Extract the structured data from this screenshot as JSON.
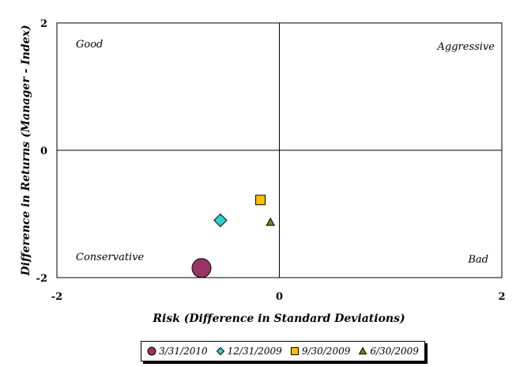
{
  "chart_data": {
    "type": "scatter",
    "xlabel": "Risk (Difference in Standard Deviations)",
    "ylabel": "Difference in Returns (Manager - Index)",
    "xlim": [
      -2,
      2
    ],
    "ylim": [
      -2,
      2
    ],
    "x_ticks": [
      "-2",
      "0",
      "2"
    ],
    "y_ticks": [
      "2",
      "0",
      "-2"
    ],
    "quadrant_labels": {
      "top_left": "Good",
      "top_right": "Aggressive",
      "bottom_left": "Conservative",
      "bottom_right": "Bad"
    },
    "grid": false,
    "legend_position": "bottom",
    "series": [
      {
        "name": "3/31/2010",
        "marker": "circle",
        "color": "#993366",
        "x": -0.7,
        "y": -1.85,
        "size": 12
      },
      {
        "name": "12/31/2009",
        "marker": "diamond",
        "color": "#33CCCC",
        "x": -0.53,
        "y": -1.1,
        "size": 8
      },
      {
        "name": "9/30/2009",
        "marker": "square",
        "color": "#FFC000",
        "x": -0.17,
        "y": -0.78,
        "size": 6
      },
      {
        "name": "6/30/2009",
        "marker": "triangle",
        "color": "#808000",
        "x": -0.08,
        "y": -1.13,
        "size": 5
      }
    ]
  }
}
